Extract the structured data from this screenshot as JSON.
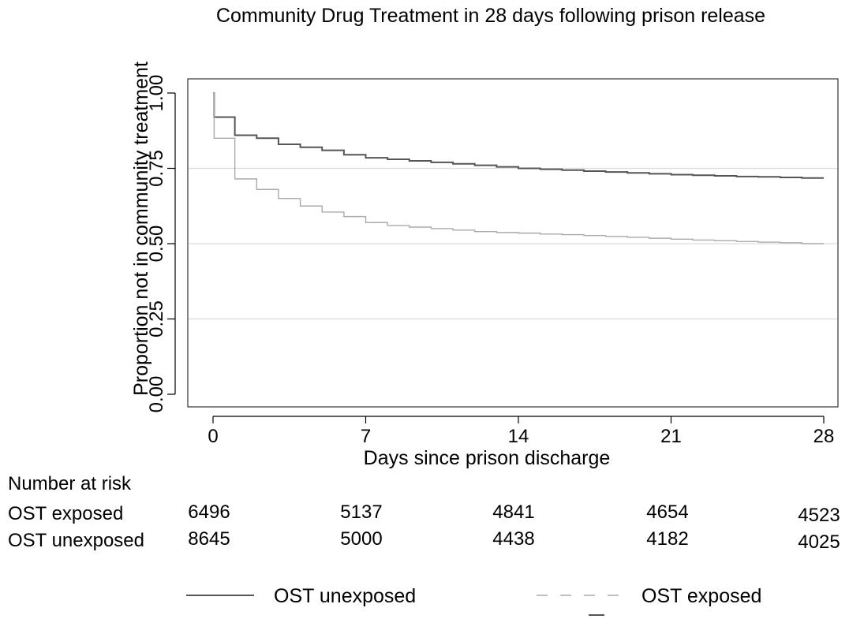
{
  "chart_data": {
    "type": "line",
    "title": "Community Drug Treatment in 28 days following prison release",
    "xlabel": "Days since prison discharge",
    "ylabel": "Proportion not in community treatment",
    "xlim": [
      0,
      28
    ],
    "ylim": [
      0,
      1
    ],
    "x_ticks": [
      "0",
      "7",
      "14",
      "21",
      "28"
    ],
    "y_ticks": [
      "0.00",
      "0.25",
      "0.50",
      "0.75",
      "1.00"
    ],
    "grid": "horizontal",
    "legend_position": "bottom",
    "series": [
      {
        "name": "OST unexposed",
        "color": "#555555",
        "line_style": "solid",
        "x": [
          0,
          0.05,
          1,
          2,
          3,
          4,
          5,
          6,
          7,
          8,
          9,
          10,
          11,
          12,
          13,
          14,
          15,
          16,
          17,
          18,
          19,
          20,
          21,
          22,
          23,
          24,
          25,
          26,
          27,
          28
        ],
        "y": [
          1.0,
          0.92,
          0.86,
          0.85,
          0.83,
          0.82,
          0.81,
          0.795,
          0.785,
          0.78,
          0.775,
          0.77,
          0.765,
          0.76,
          0.755,
          0.75,
          0.747,
          0.744,
          0.741,
          0.738,
          0.735,
          0.732,
          0.729,
          0.727,
          0.725,
          0.723,
          0.722,
          0.72,
          0.718,
          0.718
        ]
      },
      {
        "name": "OST exposed",
        "color": "#aaaaaa",
        "line_style": "dashed",
        "x": [
          0,
          0.05,
          1,
          2,
          3,
          4,
          5,
          6,
          7,
          8,
          9,
          10,
          11,
          12,
          13,
          14,
          15,
          16,
          17,
          18,
          19,
          20,
          21,
          22,
          23,
          24,
          25,
          26,
          27,
          28
        ],
        "y": [
          1.0,
          0.85,
          0.715,
          0.68,
          0.65,
          0.625,
          0.605,
          0.59,
          0.57,
          0.56,
          0.555,
          0.55,
          0.545,
          0.54,
          0.537,
          0.535,
          0.532,
          0.53,
          0.527,
          0.524,
          0.521,
          0.518,
          0.515,
          0.512,
          0.51,
          0.507,
          0.505,
          0.503,
          0.5,
          0.5
        ]
      }
    ],
    "risk_table": {
      "heading": "Number at risk",
      "rows": [
        {
          "label": "OST exposed",
          "values": [
            "6496",
            "5137",
            "4841",
            "4654",
            "4523"
          ]
        },
        {
          "label": "OST unexposed",
          "values": [
            "8645",
            "5000",
            "4438",
            "4182",
            "4025"
          ]
        }
      ]
    }
  }
}
